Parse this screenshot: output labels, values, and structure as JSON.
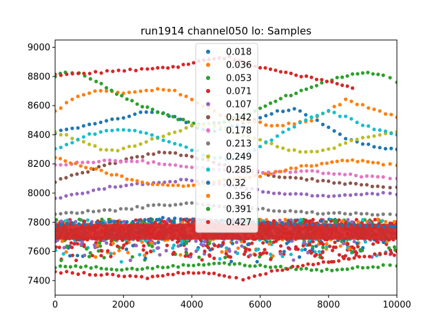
{
  "chart_data": {
    "type": "scatter",
    "title": "run1914 channel050 lo: Samples",
    "xlabel": "",
    "ylabel": "",
    "xlim": [
      0,
      10000
    ],
    "ylim": [
      7300,
      9050
    ],
    "xticks": [
      0,
      2000,
      4000,
      6000,
      8000,
      10000
    ],
    "yticks": [
      7400,
      7600,
      7800,
      8000,
      8200,
      8400,
      8600,
      8800,
      9000
    ],
    "xtick_labels": [
      "0",
      "2000",
      "4000",
      "6000",
      "8000",
      "10000"
    ],
    "ytick_labels": [
      "7400",
      "7600",
      "7800",
      "8000",
      "8200",
      "8400",
      "8600",
      "8800",
      "9000"
    ],
    "legend_position": "top-center",
    "series": [
      {
        "name": "0.018",
        "color": "#1f77b4",
        "points": [
          [
            0,
            8415
          ],
          [
            500,
            8440
          ],
          [
            1000,
            8470
          ],
          [
            1500,
            8490
          ],
          [
            2000,
            8520
          ],
          [
            2500,
            8550
          ],
          [
            3000,
            8560
          ],
          [
            3500,
            8520
          ],
          [
            4000,
            8470
          ],
          [
            4500,
            8420
          ],
          [
            5000,
            8440
          ],
          [
            5500,
            8480
          ],
          [
            6000,
            8520
          ],
          [
            6500,
            8560
          ],
          [
            7000,
            8580
          ],
          [
            7500,
            8520
          ],
          [
            8000,
            8450
          ],
          [
            8500,
            8380
          ],
          [
            9000,
            8340
          ],
          [
            9500,
            8310
          ],
          [
            10000,
            8300
          ]
        ]
      },
      {
        "name": "0.036",
        "color": "#ff7f0e",
        "points": [
          [
            0,
            8560
          ],
          [
            500,
            8640
          ],
          [
            1000,
            8690
          ],
          [
            1500,
            8700
          ],
          [
            2000,
            8690
          ],
          [
            2500,
            8700
          ],
          [
            3000,
            8710
          ],
          [
            3500,
            8700
          ],
          [
            4000,
            8640
          ],
          [
            4500,
            8580
          ],
          [
            5000,
            8520
          ],
          [
            5500,
            8500
          ],
          [
            6000,
            8480
          ],
          [
            6500,
            8460
          ],
          [
            7000,
            8480
          ],
          [
            7500,
            8500
          ],
          [
            8000,
            8560
          ],
          [
            8500,
            8640
          ],
          [
            9000,
            8600
          ],
          [
            9500,
            8560
          ],
          [
            10000,
            8520
          ]
        ]
      },
      {
        "name": "0.053",
        "color": "#2ca02c",
        "points": [
          [
            0,
            8800
          ],
          [
            300,
            8830
          ],
          [
            700,
            8820
          ],
          [
            1200,
            8770
          ],
          [
            1800,
            8680
          ],
          [
            2400,
            8610
          ],
          [
            3000,
            8560
          ],
          [
            3600,
            8510
          ],
          [
            4200,
            8470
          ],
          [
            4800,
            8480
          ],
          [
            5400,
            8520
          ],
          [
            6000,
            8580
          ],
          [
            6600,
            8650
          ],
          [
            7200,
            8700
          ],
          [
            7800,
            8750
          ],
          [
            8400,
            8800
          ],
          [
            9000,
            8830
          ],
          [
            9600,
            8810
          ],
          [
            10000,
            8760
          ]
        ]
      },
      {
        "name": "0.071",
        "color": "#d62728",
        "points": [
          [
            0,
            8810
          ],
          [
            2700,
            8850
          ],
          [
            3300,
            8860
          ],
          [
            3900,
            8880
          ],
          [
            4500,
            8920
          ],
          [
            5100,
            8930
          ],
          [
            5700,
            8880
          ],
          [
            6300,
            8850
          ],
          [
            6900,
            8820
          ],
          [
            7500,
            8790
          ],
          [
            8100,
            8760
          ],
          [
            8700,
            8720
          ]
        ]
      },
      {
        "name": "0.107",
        "color": "#9467bd",
        "points": [
          [
            0,
            7960
          ],
          [
            800,
            8000
          ],
          [
            1600,
            8040
          ],
          [
            2400,
            8060
          ],
          [
            3200,
            8080
          ],
          [
            4000,
            8090
          ],
          [
            4800,
            8060
          ],
          [
            5600,
            8030
          ],
          [
            6400,
            8000
          ],
          [
            7200,
            7990
          ],
          [
            8000,
            7980
          ],
          [
            8800,
            7990
          ],
          [
            9600,
            8000
          ],
          [
            10000,
            7990
          ]
        ]
      },
      {
        "name": "0.142",
        "color": "#8c564b",
        "points": [
          [
            0,
            8080
          ],
          [
            800,
            8140
          ],
          [
            1600,
            8200
          ],
          [
            2400,
            8250
          ],
          [
            3200,
            8280
          ],
          [
            4000,
            8250
          ],
          [
            4800,
            8200
          ],
          [
            5600,
            8150
          ],
          [
            6400,
            8120
          ],
          [
            7200,
            8100
          ],
          [
            8000,
            8080
          ],
          [
            8800,
            8060
          ],
          [
            9600,
            8040
          ],
          [
            10000,
            8040
          ]
        ]
      },
      {
        "name": "0.178",
        "color": "#e377c2",
        "points": [
          [
            0,
            8190
          ],
          [
            800,
            8210
          ],
          [
            1600,
            8220
          ],
          [
            2400,
            8220
          ],
          [
            3200,
            8200
          ],
          [
            4000,
            8180
          ],
          [
            4800,
            8160
          ],
          [
            5600,
            8150
          ],
          [
            6400,
            8140
          ],
          [
            7200,
            8150
          ],
          [
            8000,
            8140
          ],
          [
            8800,
            8120
          ],
          [
            9600,
            8110
          ],
          [
            10000,
            8100
          ]
        ]
      },
      {
        "name": "0.213",
        "color": "#7f7f7f",
        "points": [
          [
            0,
            7860
          ],
          [
            800,
            7870
          ],
          [
            1600,
            7880
          ],
          [
            2400,
            7900
          ],
          [
            3200,
            7920
          ],
          [
            4000,
            7930
          ],
          [
            4800,
            7910
          ],
          [
            5600,
            7900
          ],
          [
            6400,
            7880
          ],
          [
            7200,
            7870
          ],
          [
            8000,
            7860
          ],
          [
            8800,
            7860
          ],
          [
            9600,
            7850
          ],
          [
            10000,
            7850
          ]
        ]
      },
      {
        "name": "0.249",
        "color": "#bcbd22",
        "points": [
          [
            0,
            8420
          ],
          [
            500,
            8380
          ],
          [
            1000,
            8330
          ],
          [
            1500,
            8290
          ],
          [
            2000,
            8300
          ],
          [
            2500,
            8340
          ],
          [
            3000,
            8380
          ],
          [
            3500,
            8420
          ],
          [
            4000,
            8460
          ],
          [
            4500,
            8480
          ],
          [
            5000,
            8440
          ],
          [
            5500,
            8400
          ],
          [
            6000,
            8360
          ],
          [
            6500,
            8320
          ],
          [
            7000,
            8290
          ],
          [
            7500,
            8280
          ],
          [
            8000,
            8300
          ],
          [
            8500,
            8340
          ],
          [
            9000,
            8380
          ],
          [
            9500,
            8400
          ],
          [
            10000,
            8420
          ]
        ]
      },
      {
        "name": "0.285",
        "color": "#17becf",
        "points": [
          [
            0,
            8300
          ],
          [
            500,
            8350
          ],
          [
            1000,
            8400
          ],
          [
            1500,
            8430
          ],
          [
            2000,
            8440
          ],
          [
            2500,
            8420
          ],
          [
            3000,
            8380
          ],
          [
            3500,
            8340
          ],
          [
            4000,
            8300
          ],
          [
            4500,
            8250
          ],
          [
            5000,
            8230
          ],
          [
            5500,
            8260
          ],
          [
            6000,
            8320
          ],
          [
            6500,
            8390
          ],
          [
            7000,
            8460
          ],
          [
            7500,
            8520
          ],
          [
            8000,
            8560
          ],
          [
            8500,
            8520
          ],
          [
            9000,
            8470
          ],
          [
            9500,
            8430
          ],
          [
            10000,
            8400
          ]
        ]
      },
      {
        "name": "0.32",
        "color": "#1f77b4",
        "points": [
          [
            0,
            7780
          ],
          [
            700,
            7790
          ],
          [
            1400,
            7800
          ],
          [
            2100,
            7800
          ],
          [
            2800,
            7820
          ],
          [
            3500,
            7830
          ],
          [
            4200,
            7820
          ],
          [
            4900,
            7810
          ],
          [
            5600,
            7800
          ],
          [
            6300,
            7790
          ],
          [
            7000,
            7790
          ],
          [
            7700,
            7780
          ],
          [
            8400,
            7780
          ],
          [
            9100,
            7780
          ],
          [
            9800,
            7770
          ],
          [
            10000,
            7770
          ]
        ]
      },
      {
        "name": "0.356",
        "color": "#ff7f0e",
        "points": [
          [
            0,
            8240
          ],
          [
            600,
            8200
          ],
          [
            1200,
            8160
          ],
          [
            1800,
            8120
          ],
          [
            2400,
            8080
          ],
          [
            3000,
            8060
          ],
          [
            3600,
            8050
          ],
          [
            4200,
            8060
          ],
          [
            4800,
            8080
          ],
          [
            5400,
            8100
          ],
          [
            6000,
            8120
          ],
          [
            6600,
            8150
          ],
          [
            7200,
            8180
          ],
          [
            7800,
            8200
          ],
          [
            8400,
            8230
          ],
          [
            9000,
            8220
          ],
          [
            9600,
            8200
          ],
          [
            10000,
            8190
          ]
        ]
      },
      {
        "name": "0.391",
        "color": "#2ca02c",
        "points": [
          [
            0,
            7490
          ],
          [
            600,
            7500
          ],
          [
            1200,
            7490
          ],
          [
            1800,
            7480
          ],
          [
            2400,
            7480
          ],
          [
            3000,
            7490
          ],
          [
            3600,
            7500
          ],
          [
            4200,
            7510
          ],
          [
            4800,
            7520
          ],
          [
            5400,
            7510
          ],
          [
            6000,
            7500
          ],
          [
            6600,
            7490
          ],
          [
            7200,
            7480
          ],
          [
            7800,
            7470
          ],
          [
            8400,
            7480
          ],
          [
            9000,
            7490
          ],
          [
            9600,
            7500
          ],
          [
            10000,
            7500
          ]
        ]
      },
      {
        "name": "0.427",
        "color": "#d62728",
        "points": [
          [
            0,
            7460
          ],
          [
            2700,
            7420
          ],
          [
            3300,
            7440
          ],
          [
            3900,
            7460
          ],
          [
            4500,
            7450
          ],
          [
            5100,
            7430
          ],
          [
            5500,
            7410
          ],
          [
            6000,
            7440
          ],
          [
            6500,
            7470
          ],
          [
            7100,
            7500
          ],
          [
            7700,
            7520
          ],
          [
            8300,
            7540
          ],
          [
            8900,
            7560
          ],
          [
            9500,
            7580
          ],
          [
            10000,
            7600
          ]
        ]
      }
    ]
  }
}
